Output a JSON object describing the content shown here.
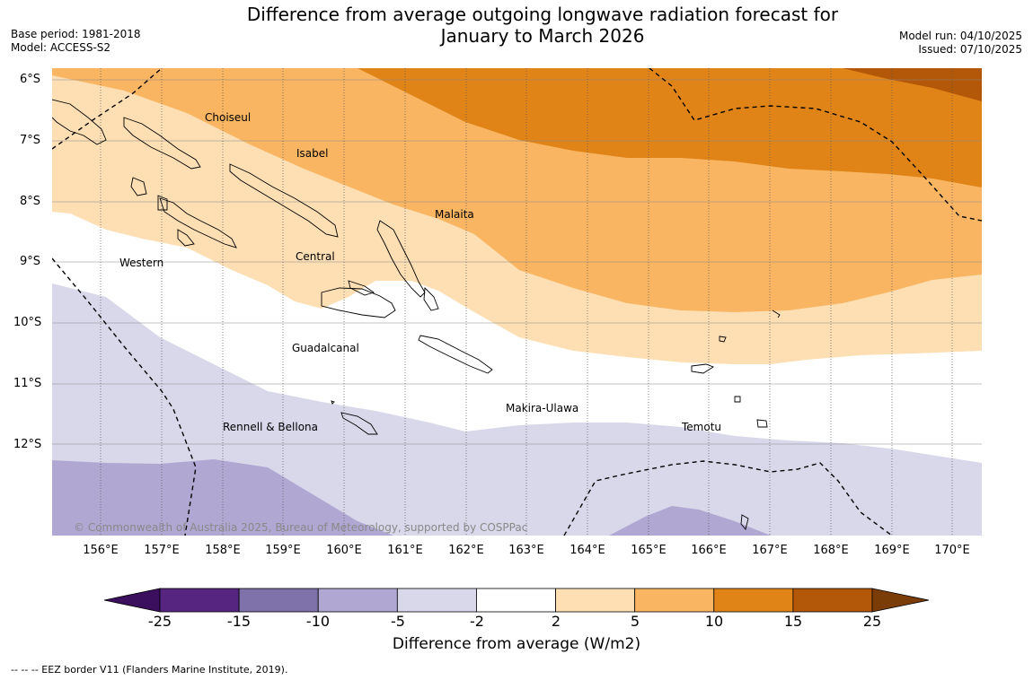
{
  "header": {
    "title_line1": "Difference from average outgoing longwave radiation forecast for",
    "title_line2": "January to March 2026",
    "base_period": "Base period: 1981-2018",
    "model": "Model: ACCESS-S2",
    "model_run": "Model run: 04/10/2025",
    "issued": "Issued: 07/10/2025"
  },
  "map": {
    "lat_labels": [
      "6°S",
      "7°S",
      "8°S",
      "9°S",
      "10°S",
      "11°S",
      "12°S"
    ],
    "lon_labels": [
      "156°E",
      "157°E",
      "158°E",
      "159°E",
      "160°E",
      "161°E",
      "162°E",
      "163°E",
      "164°E",
      "165°E",
      "166°E",
      "167°E",
      "168°E",
      "169°E",
      "170°E"
    ],
    "regions": [
      "Choiseul",
      "Isabel",
      "Malaita",
      "Western",
      "Central",
      "Guadalcanal",
      "Makira-Ulawa",
      "Rennell & Bellona",
      "Temotu"
    ],
    "copyright": "© Commonwealth of Australia 2025, Bureau of Meteorology, supported by COSPPac"
  },
  "colorbar": {
    "ticks": [
      "-25",
      "-15",
      "-10",
      "-5",
      "-2",
      "2",
      "5",
      "10",
      "15",
      "25"
    ],
    "colors": [
      "#552580",
      "#7f71aa",
      "#b0a8d3",
      "#d8d8ea",
      "#ffffff",
      "#fddfb3",
      "#f9b562",
      "#e08418",
      "#b35708"
    ],
    "extend_low_color": "#3b0f5e",
    "extend_high_color": "#7b3d08",
    "title": "Difference from average (W/m2)"
  },
  "footnote": "--  --  -- EEZ border V11 (Flanders Marine Institute, 2019)."
}
